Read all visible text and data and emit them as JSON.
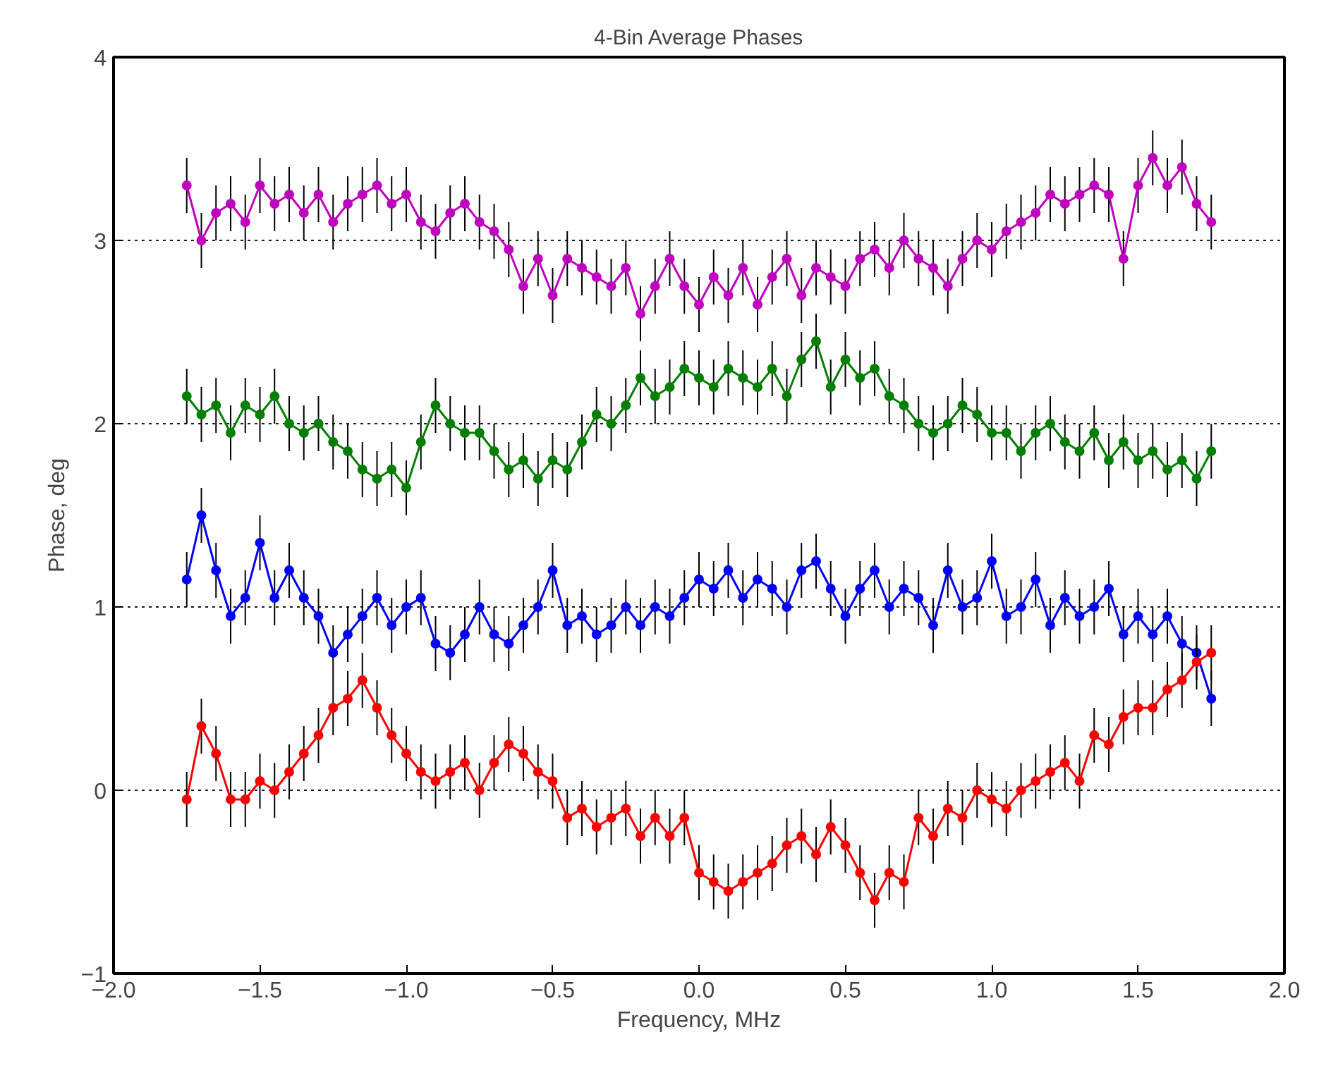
{
  "chart_data": {
    "type": "line",
    "title": "4-Bin Average Phases",
    "xlabel": "Frequency, MHz",
    "ylabel": "Phase, deg",
    "xlim": [
      -2.0,
      2.0
    ],
    "ylim": [
      -1,
      4
    ],
    "xticks": [
      {
        "value": -2.0,
        "label": "−2.0"
      },
      {
        "value": -1.5,
        "label": "−1.5"
      },
      {
        "value": -1.0,
        "label": "−1.0"
      },
      {
        "value": -0.5,
        "label": "−0.5"
      },
      {
        "value": 0.0,
        "label": "0.0"
      },
      {
        "value": 0.5,
        "label": "0.5"
      },
      {
        "value": 1.0,
        "label": "1.0"
      },
      {
        "value": 1.5,
        "label": "1.5"
      },
      {
        "value": 2.0,
        "label": "2.0"
      }
    ],
    "yticks": [
      {
        "value": -1,
        "label": "−1"
      },
      0,
      1,
      2,
      3,
      4
    ],
    "grid": "y",
    "marker": "circle",
    "line_style": "solid",
    "x": [
      -1.75,
      -1.7,
      -1.65,
      -1.6,
      -1.55,
      -1.5,
      -1.45,
      -1.4,
      -1.35,
      -1.3,
      -1.25,
      -1.2,
      -1.15,
      -1.1,
      -1.05,
      -1.0,
      -0.95,
      -0.9,
      -0.85,
      -0.8,
      -0.75,
      -0.7,
      -0.65,
      -0.6,
      -0.55,
      -0.5,
      -0.45,
      -0.4,
      -0.35,
      -0.3,
      -0.25,
      -0.2,
      -0.15,
      -0.1,
      -0.05,
      0.0,
      0.05,
      0.1,
      0.15,
      0.2,
      0.25,
      0.3,
      0.35,
      0.4,
      0.45,
      0.5,
      0.55,
      0.6,
      0.65,
      0.7,
      0.75,
      0.8,
      0.85,
      0.9,
      0.95,
      1.0,
      1.05,
      1.1,
      1.15,
      1.2,
      1.25,
      1.3,
      1.35,
      1.4,
      1.45,
      1.5,
      1.55,
      1.6,
      1.65,
      1.7,
      1.75
    ],
    "series": [
      {
        "color": "#bf00bf",
        "values": [
          3.3,
          3.0,
          3.15,
          3.2,
          3.1,
          3.3,
          3.2,
          3.25,
          3.15,
          3.25,
          3.1,
          3.2,
          3.25,
          3.3,
          3.2,
          3.25,
          3.1,
          3.05,
          3.15,
          3.2,
          3.1,
          3.05,
          2.95,
          2.75,
          2.9,
          2.7,
          2.9,
          2.85,
          2.8,
          2.75,
          2.85,
          2.6,
          2.75,
          2.9,
          2.75,
          2.65,
          2.8,
          2.7,
          2.85,
          2.65,
          2.8,
          2.9,
          2.7,
          2.85,
          2.8,
          2.75,
          2.9,
          2.95,
          2.85,
          3.0,
          2.9,
          2.85,
          2.75,
          2.9,
          3.0,
          2.95,
          3.05,
          3.1,
          3.15,
          3.25,
          3.2,
          3.25,
          3.3,
          3.25,
          2.9,
          3.3,
          3.45,
          3.3,
          3.4,
          3.2,
          3.1
        ],
        "errors": [
          0.15,
          0.15,
          0.15,
          0.15,
          0.15,
          0.15,
          0.15,
          0.15,
          0.15,
          0.15,
          0.15,
          0.15,
          0.15,
          0.15,
          0.15,
          0.15,
          0.15,
          0.15,
          0.15,
          0.15,
          0.15,
          0.15,
          0.15,
          0.15,
          0.15,
          0.15,
          0.15,
          0.15,
          0.15,
          0.15,
          0.15,
          0.15,
          0.15,
          0.15,
          0.15,
          0.15,
          0.15,
          0.15,
          0.15,
          0.15,
          0.15,
          0.15,
          0.15,
          0.15,
          0.15,
          0.15,
          0.15,
          0.15,
          0.15,
          0.15,
          0.15,
          0.15,
          0.15,
          0.15,
          0.15,
          0.15,
          0.15,
          0.15,
          0.15,
          0.15,
          0.15,
          0.15,
          0.15,
          0.15,
          0.15,
          0.15,
          0.15,
          0.15,
          0.15,
          0.15,
          0.15
        ]
      },
      {
        "color": "#007f00",
        "values": [
          2.15,
          2.05,
          2.1,
          1.95,
          2.1,
          2.05,
          2.15,
          2.0,
          1.95,
          2.0,
          1.9,
          1.85,
          1.75,
          1.7,
          1.75,
          1.65,
          1.9,
          2.1,
          2.0,
          1.95,
          1.95,
          1.85,
          1.75,
          1.8,
          1.7,
          1.8,
          1.75,
          1.9,
          2.05,
          2.0,
          2.1,
          2.25,
          2.15,
          2.2,
          2.3,
          2.25,
          2.2,
          2.3,
          2.25,
          2.2,
          2.3,
          2.15,
          2.35,
          2.45,
          2.2,
          2.35,
          2.25,
          2.3,
          2.15,
          2.1,
          2.0,
          1.95,
          2.0,
          2.1,
          2.05,
          1.95,
          1.95,
          1.85,
          1.95,
          2.0,
          1.9,
          1.85,
          1.95,
          1.8,
          1.9,
          1.8,
          1.85,
          1.75,
          1.8,
          1.7,
          1.85
        ],
        "errors": [
          0.15,
          0.15,
          0.15,
          0.15,
          0.15,
          0.15,
          0.15,
          0.15,
          0.15,
          0.15,
          0.15,
          0.15,
          0.15,
          0.15,
          0.15,
          0.15,
          0.15,
          0.15,
          0.15,
          0.15,
          0.15,
          0.15,
          0.15,
          0.15,
          0.15,
          0.15,
          0.15,
          0.15,
          0.15,
          0.15,
          0.15,
          0.15,
          0.15,
          0.15,
          0.15,
          0.15,
          0.15,
          0.15,
          0.15,
          0.15,
          0.15,
          0.15,
          0.15,
          0.15,
          0.15,
          0.15,
          0.15,
          0.15,
          0.15,
          0.15,
          0.15,
          0.15,
          0.15,
          0.15,
          0.15,
          0.15,
          0.15,
          0.15,
          0.15,
          0.15,
          0.15,
          0.15,
          0.15,
          0.15,
          0.15,
          0.15,
          0.15,
          0.15,
          0.15,
          0.15,
          0.15
        ]
      },
      {
        "color": "#0000ff",
        "values": [
          1.15,
          1.5,
          1.2,
          0.95,
          1.05,
          1.35,
          1.05,
          1.2,
          1.05,
          0.95,
          0.75,
          0.85,
          0.95,
          1.05,
          0.9,
          1.0,
          1.05,
          0.8,
          0.75,
          0.85,
          1.0,
          0.85,
          0.8,
          0.9,
          1.0,
          1.2,
          0.9,
          0.95,
          0.85,
          0.9,
          1.0,
          0.9,
          1.0,
          0.95,
          1.05,
          1.15,
          1.1,
          1.2,
          1.05,
          1.15,
          1.1,
          1.0,
          1.2,
          1.25,
          1.1,
          0.95,
          1.1,
          1.2,
          1.0,
          1.1,
          1.05,
          0.9,
          1.2,
          1.0,
          1.05,
          1.25,
          0.95,
          1.0,
          1.15,
          0.9,
          1.05,
          0.95,
          1.0,
          1.1,
          0.85,
          0.95,
          0.85,
          0.95,
          0.8,
          0.75,
          0.5
        ],
        "errors": [
          0.15,
          0.15,
          0.15,
          0.15,
          0.15,
          0.15,
          0.15,
          0.15,
          0.15,
          0.15,
          0.15,
          0.15,
          0.15,
          0.15,
          0.15,
          0.15,
          0.15,
          0.15,
          0.15,
          0.15,
          0.15,
          0.15,
          0.15,
          0.15,
          0.15,
          0.15,
          0.15,
          0.15,
          0.15,
          0.15,
          0.15,
          0.15,
          0.15,
          0.15,
          0.15,
          0.15,
          0.15,
          0.15,
          0.15,
          0.15,
          0.15,
          0.15,
          0.15,
          0.15,
          0.15,
          0.15,
          0.15,
          0.15,
          0.15,
          0.15,
          0.15,
          0.15,
          0.15,
          0.15,
          0.15,
          0.15,
          0.15,
          0.15,
          0.15,
          0.15,
          0.15,
          0.15,
          0.15,
          0.15,
          0.15,
          0.15,
          0.15,
          0.15,
          0.15,
          0.15,
          0.15
        ]
      },
      {
        "color": "#ff0000",
        "values": [
          -0.05,
          0.35,
          0.2,
          -0.05,
          -0.05,
          0.05,
          0.0,
          0.1,
          0.2,
          0.3,
          0.45,
          0.5,
          0.6,
          0.45,
          0.3,
          0.2,
          0.1,
          0.05,
          0.1,
          0.15,
          0.0,
          0.15,
          0.25,
          0.2,
          0.1,
          0.05,
          -0.15,
          -0.1,
          -0.2,
          -0.15,
          -0.1,
          -0.25,
          -0.15,
          -0.25,
          -0.15,
          -0.45,
          -0.5,
          -0.55,
          -0.5,
          -0.45,
          -0.4,
          -0.3,
          -0.25,
          -0.35,
          -0.2,
          -0.3,
          -0.45,
          -0.6,
          -0.45,
          -0.5,
          -0.15,
          -0.25,
          -0.1,
          -0.15,
          0.0,
          -0.05,
          -0.1,
          0.0,
          0.05,
          0.1,
          0.15,
          0.05,
          0.3,
          0.25,
          0.4,
          0.45,
          0.45,
          0.55,
          0.6,
          0.7,
          0.75
        ],
        "errors": [
          0.15,
          0.15,
          0.15,
          0.15,
          0.15,
          0.15,
          0.15,
          0.15,
          0.15,
          0.15,
          0.15,
          0.15,
          0.15,
          0.15,
          0.15,
          0.15,
          0.15,
          0.15,
          0.15,
          0.15,
          0.15,
          0.15,
          0.15,
          0.15,
          0.15,
          0.15,
          0.15,
          0.15,
          0.15,
          0.15,
          0.15,
          0.15,
          0.15,
          0.15,
          0.15,
          0.15,
          0.15,
          0.15,
          0.15,
          0.15,
          0.15,
          0.15,
          0.15,
          0.15,
          0.15,
          0.15,
          0.15,
          0.15,
          0.15,
          0.15,
          0.15,
          0.15,
          0.15,
          0.15,
          0.15,
          0.15,
          0.15,
          0.15,
          0.15,
          0.15,
          0.15,
          0.15,
          0.15,
          0.15,
          0.15,
          0.15,
          0.15,
          0.15,
          0.15,
          0.15,
          0.15
        ]
      }
    ]
  }
}
